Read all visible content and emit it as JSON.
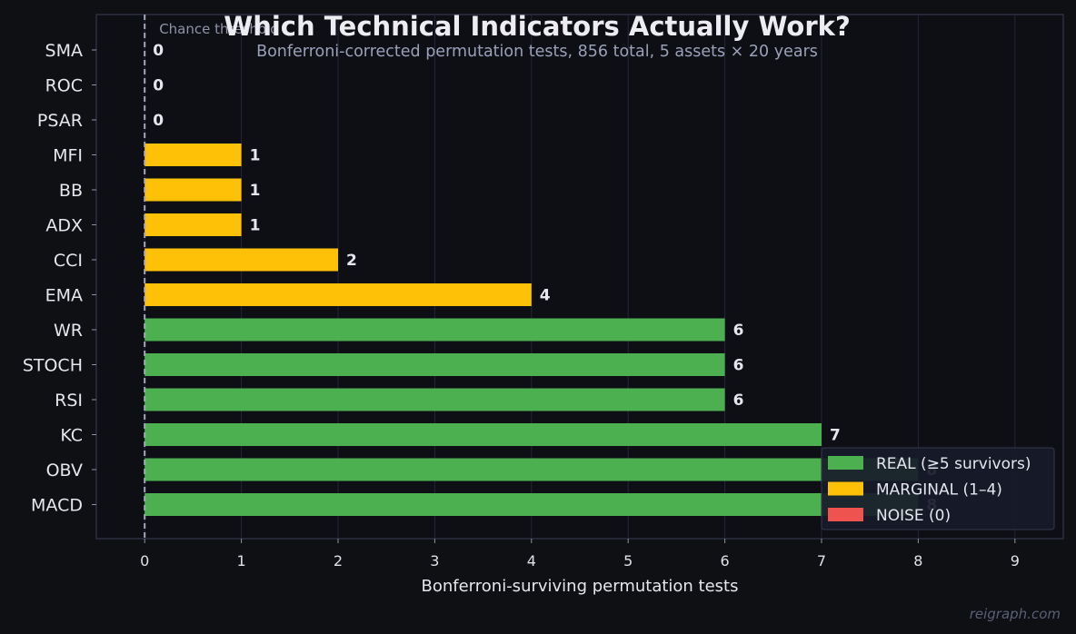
{
  "chart_data": {
    "type": "bar",
    "orientation": "horizontal",
    "title": "Which Technical Indicators Actually Work?",
    "subtitle": "Bonferroni-corrected permutation tests, 856 total, 5 assets × 20 years",
    "xlabel": "Bonferroni-surviving permutation tests",
    "ylabel": "",
    "xlim": [
      -0.5,
      9.5
    ],
    "xticks": [
      0,
      1,
      2,
      3,
      4,
      5,
      6,
      7,
      8,
      9
    ],
    "grid": "vertical",
    "categories": [
      "SMA",
      "ROC",
      "PSAR",
      "MFI",
      "BB",
      "ADX",
      "CCI",
      "EMA",
      "WR",
      "STOCH",
      "RSI",
      "KC",
      "OBV",
      "MACD"
    ],
    "values": [
      0,
      0,
      0,
      1,
      1,
      1,
      2,
      4,
      6,
      6,
      6,
      7,
      8,
      8
    ],
    "categories_class": [
      "noise",
      "noise",
      "noise",
      "marginal",
      "marginal",
      "marginal",
      "marginal",
      "marginal",
      "real",
      "real",
      "real",
      "real",
      "real",
      "real"
    ],
    "reference_line": {
      "x": 0,
      "label": "Chance threshold"
    },
    "legend": {
      "position": "bottom-right",
      "entries": [
        {
          "key": "real",
          "label": "REAL (≥5 survivors)",
          "color": "#4caf50"
        },
        {
          "key": "marginal",
          "label": "MARGINAL (1–4)",
          "color": "#ffc107"
        },
        {
          "key": "noise",
          "label": "NOISE (0)",
          "color": "#ef5350"
        }
      ]
    }
  },
  "watermark": "reigraph.com",
  "colors": {
    "background": "#0f1014",
    "plot_background": "#0e0f15",
    "text": "#e6e6ee",
    "muted": "#9aa0b8",
    "grid": "#23263a",
    "axes": "#2c2f42"
  }
}
